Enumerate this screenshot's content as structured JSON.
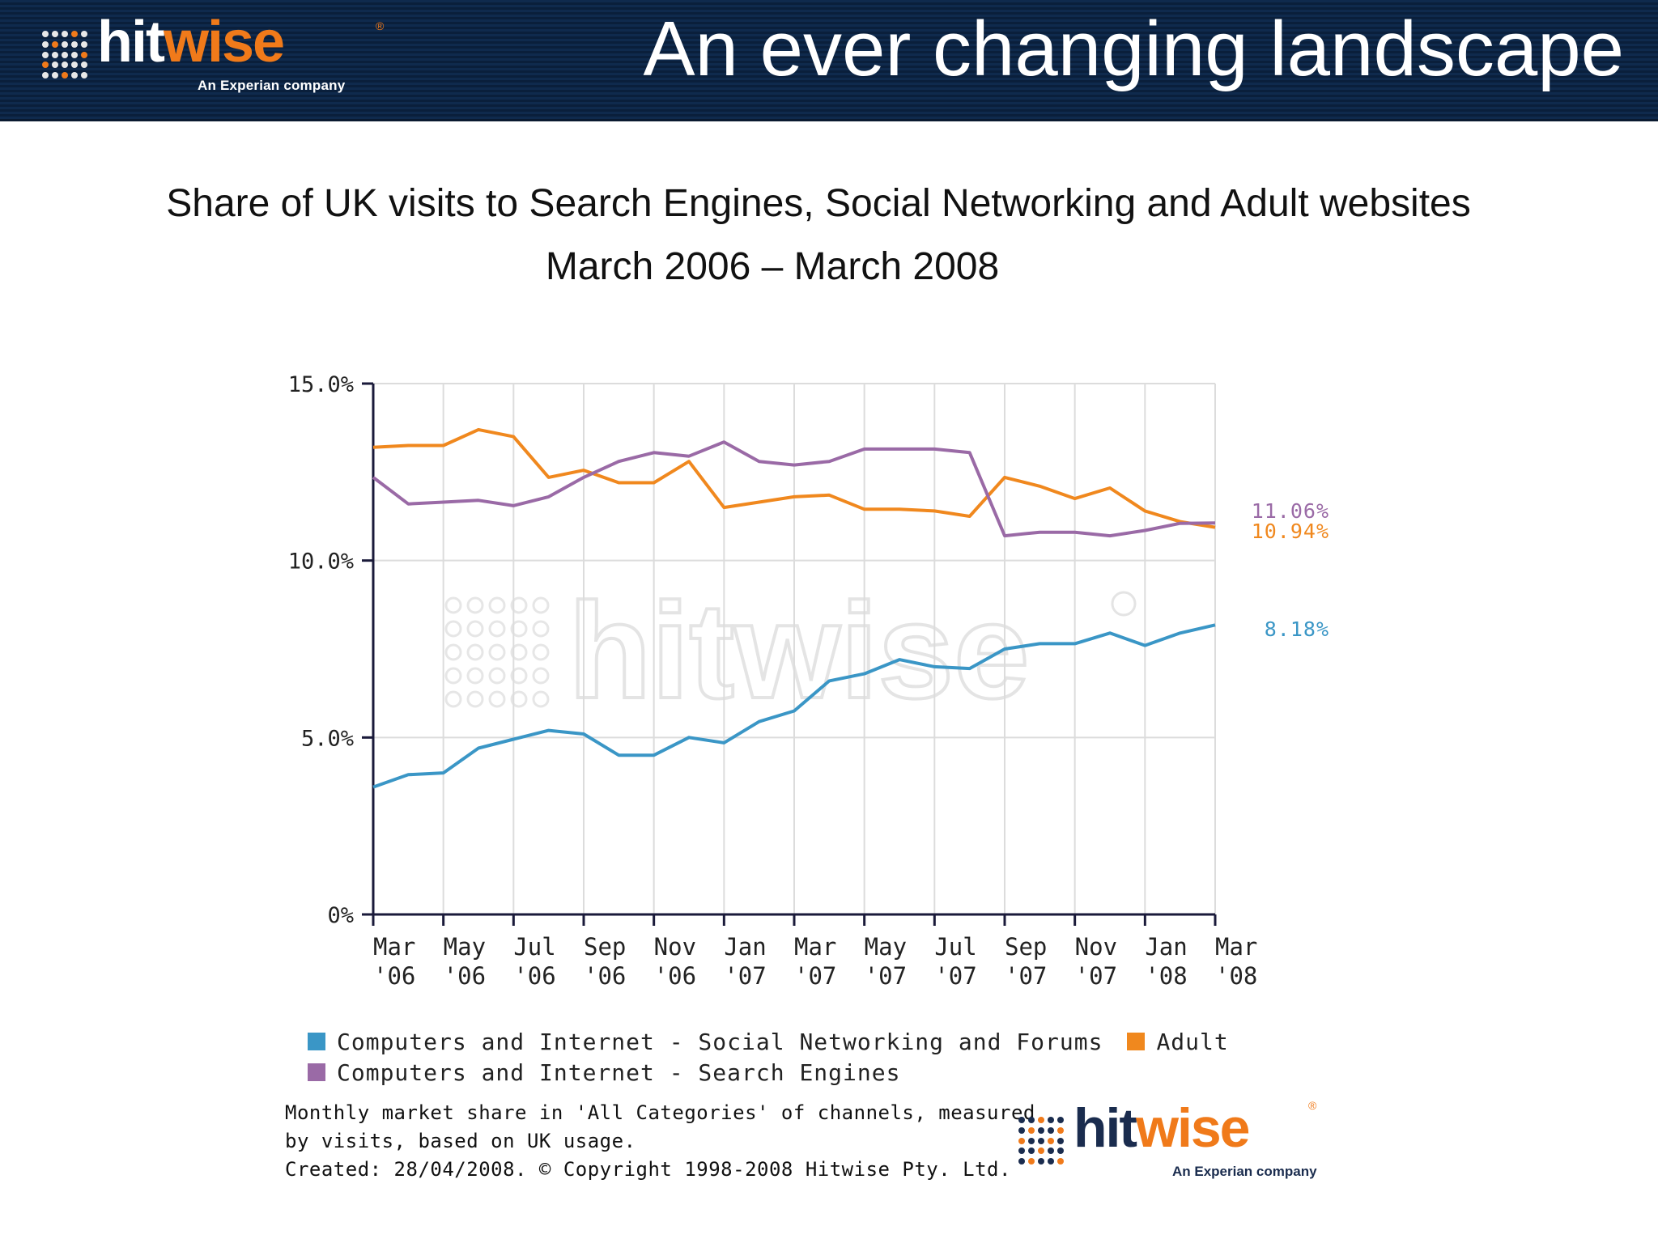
{
  "header": {
    "logo_word_part1": "hit",
    "logo_word_part2": "wise",
    "logo_registered": "®",
    "logo_tagline": "An Experian company",
    "slide_title": "An ever changing landscape"
  },
  "colors": {
    "header_bg": "#0f2a4d",
    "brand_orange": "#f07a1a",
    "social": "#3a96c6",
    "adult": "#f0881e",
    "search": "#9a6aa6"
  },
  "chart_data": {
    "type": "line",
    "title": "Share of UK visits to Search Engines, Social Networking and Adult websites",
    "subtitle": "March 2006 – March 2008",
    "y_ticks": [
      "15.0%",
      "10.0%",
      "5.0%",
      "0%"
    ],
    "y_tick_values": [
      15,
      10,
      5,
      0
    ],
    "ylim": [
      0,
      15
    ],
    "x_tick_labels": [
      [
        "Mar",
        "'06"
      ],
      [
        "May",
        "'06"
      ],
      [
        "Jul",
        "'06"
      ],
      [
        "Sep",
        "'06"
      ],
      [
        "Nov",
        "'06"
      ],
      [
        "Jan",
        "'07"
      ],
      [
        "Mar",
        "'07"
      ],
      [
        "May",
        "'07"
      ],
      [
        "Jul",
        "'07"
      ],
      [
        "Sep",
        "'07"
      ],
      [
        "Nov",
        "'07"
      ],
      [
        "Jan",
        "'08"
      ],
      [
        "Mar",
        "'08"
      ]
    ],
    "x_months": [
      "Mar 2006",
      "Apr 2006",
      "May 2006",
      "Jun 2006",
      "Jul 2006",
      "Aug 2006",
      "Sep 2006",
      "Oct 2006",
      "Nov 2006",
      "Dec 2006",
      "Jan 2007",
      "Feb 2007",
      "Mar 2007",
      "Apr 2007",
      "May 2007",
      "Jun 2007",
      "Jul 2007",
      "Aug 2007",
      "Sep 2007",
      "Oct 2007",
      "Nov 2007",
      "Dec 2007",
      "Jan 2008",
      "Feb 2008",
      "Mar 2008"
    ],
    "grid": true,
    "legend_position": "bottom",
    "series": [
      {
        "name": "Computers and Internet - Social Networking and Forums",
        "color": "#3a96c6",
        "values": [
          3.6,
          3.95,
          4.0,
          4.7,
          4.95,
          5.2,
          5.1,
          4.5,
          4.5,
          5.0,
          4.85,
          5.45,
          5.75,
          6.6,
          6.8,
          7.2,
          7.0,
          6.95,
          7.5,
          7.65,
          7.65,
          7.95,
          7.6,
          7.95,
          8.18
        ],
        "end_label": "8.18%"
      },
      {
        "name": "Adult",
        "color": "#f0881e",
        "values": [
          13.2,
          13.25,
          13.25,
          13.7,
          13.5,
          12.35,
          12.55,
          12.2,
          12.2,
          12.8,
          11.5,
          11.65,
          11.8,
          11.85,
          11.45,
          11.45,
          11.4,
          11.25,
          12.35,
          12.1,
          11.75,
          12.05,
          11.4,
          11.1,
          10.94
        ],
        "end_label": "10.94%"
      },
      {
        "name": "Computers and Internet - Search Engines",
        "color": "#9a6aa6",
        "values": [
          12.35,
          11.6,
          11.65,
          11.7,
          11.55,
          11.8,
          12.35,
          12.8,
          13.05,
          12.95,
          13.35,
          12.8,
          12.7,
          12.8,
          13.15,
          13.15,
          13.15,
          13.05,
          10.7,
          10.8,
          10.8,
          10.7,
          10.85,
          11.05,
          11.06
        ],
        "end_label": "11.06%"
      }
    ],
    "legend_rows": [
      [
        0,
        1
      ],
      [
        2
      ]
    ],
    "watermark": "hitwise"
  },
  "footnote": {
    "line1": "Monthly market share in 'All Categories' of channels, measured",
    "line2": "by visits, based on UK usage.",
    "line3": "Created: 28/04/2008. © Copyright 1998-2008 Hitwise Pty. Ltd."
  },
  "footer_logo": {
    "word_part1": "hit",
    "word_part2": "wise",
    "registered": "®",
    "tagline": "An Experian company"
  }
}
